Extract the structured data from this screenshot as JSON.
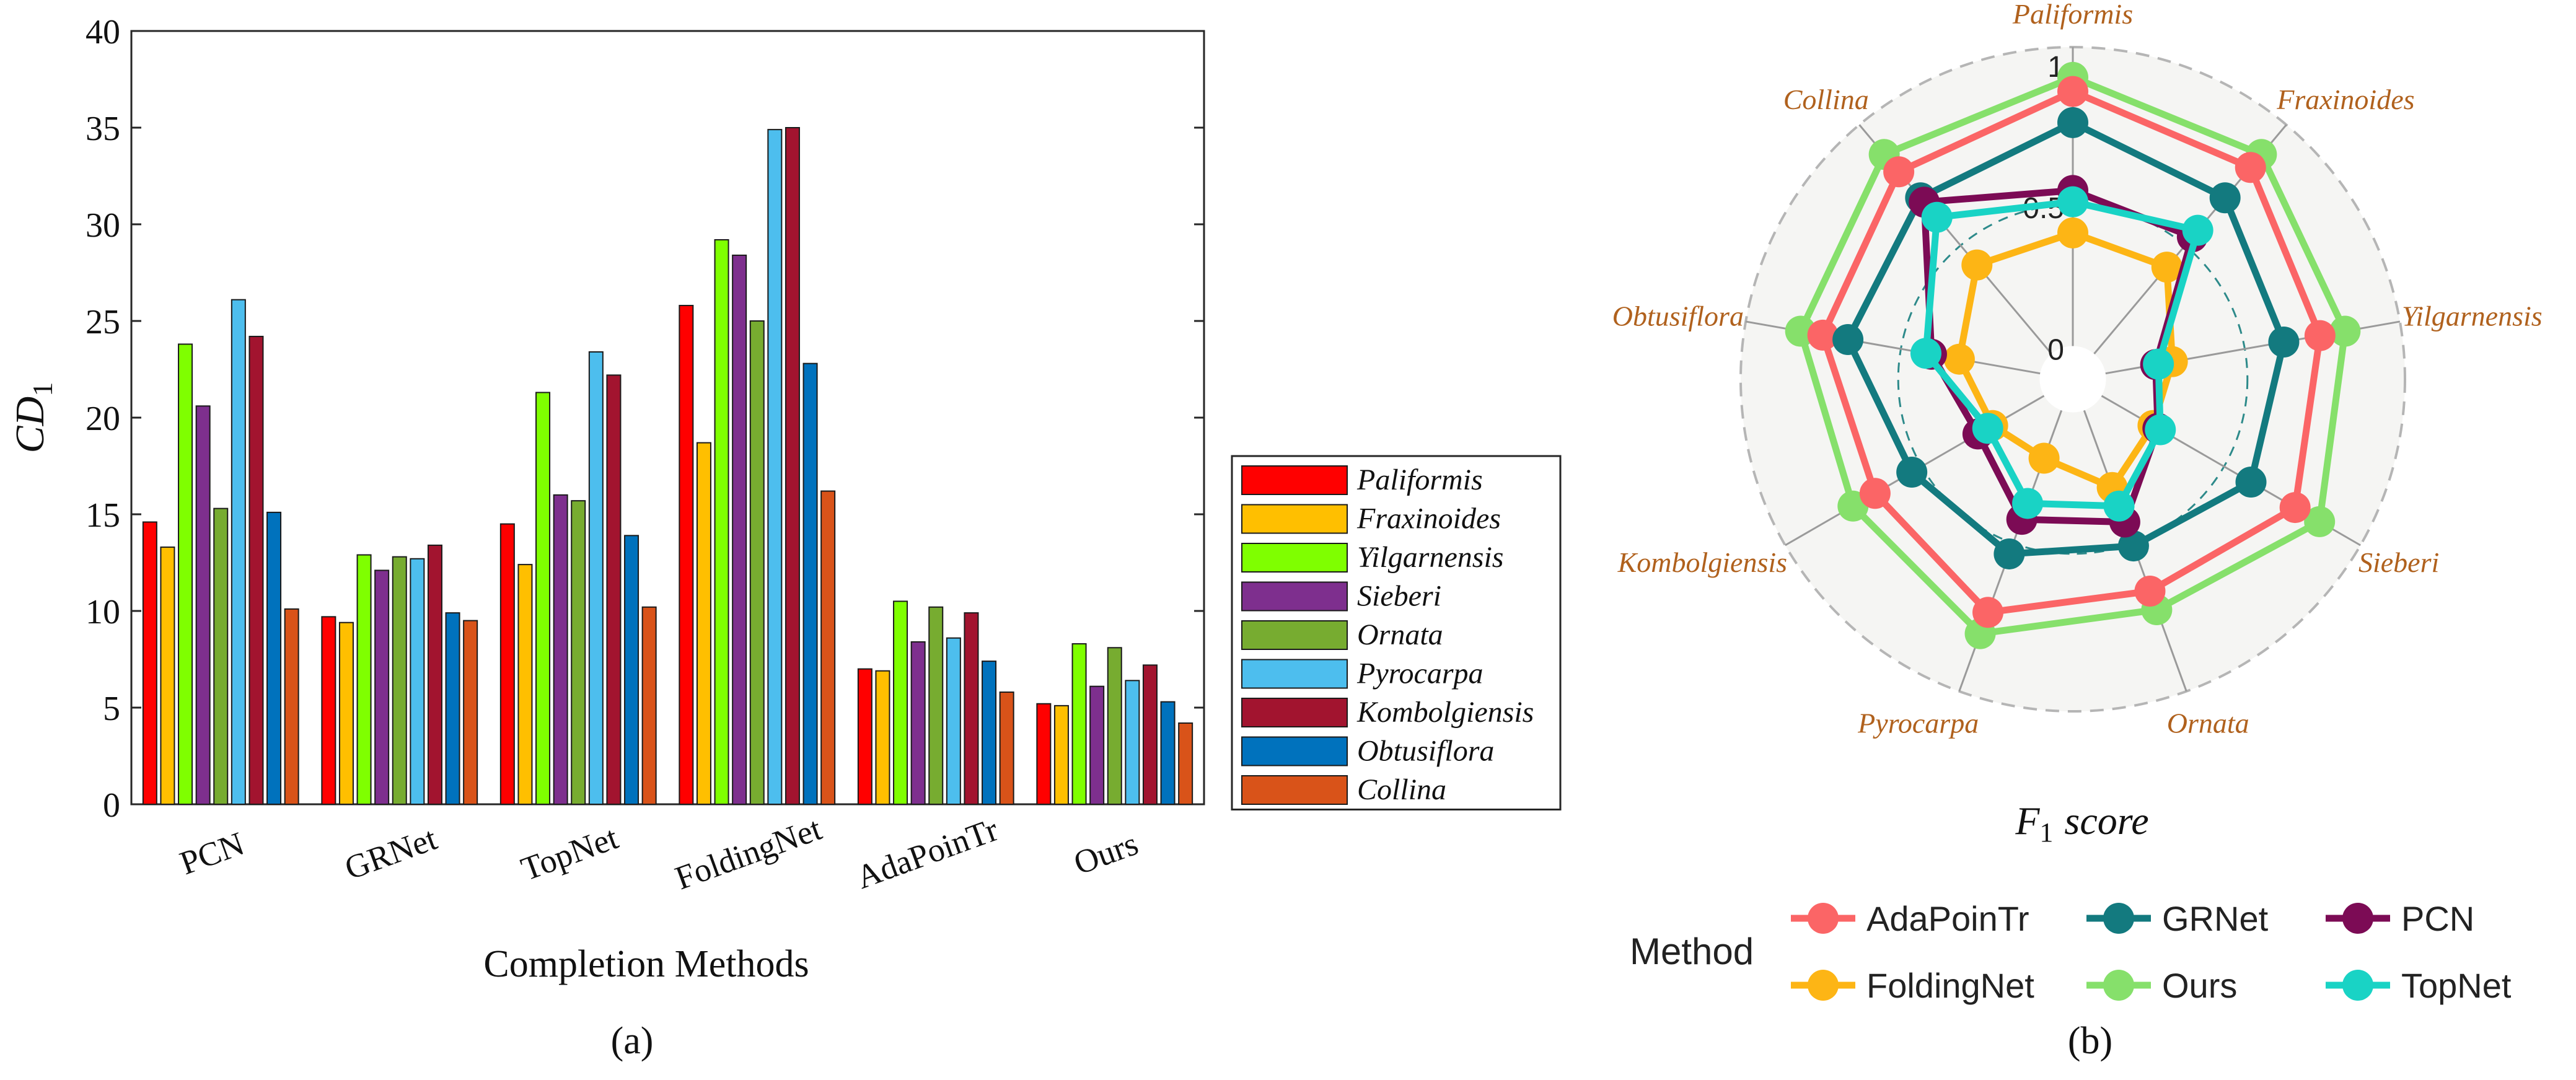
{
  "chart_data": [
    {
      "type": "bar",
      "panel_label": "(a)",
      "xlabel": "Completion Methods",
      "ylabel": "CD",
      "ylabel_sub": "1",
      "ylim": [
        0,
        40
      ],
      "yticks": [
        0,
        5,
        10,
        15,
        20,
        25,
        30,
        35,
        40
      ],
      "categories": [
        "PCN",
        "GRNet",
        "TopNet",
        "FoldingNet",
        "AdaPoinTr",
        "Ours"
      ],
      "series": [
        {
          "name": "Paliformis",
          "color": "#ff0000",
          "values": [
            14.6,
            9.7,
            14.5,
            25.8,
            7.0,
            5.2
          ]
        },
        {
          "name": "Fraxinoides",
          "color": "#ffbf00",
          "values": [
            13.3,
            9.4,
            12.4,
            18.7,
            6.9,
            5.1
          ]
        },
        {
          "name": "Yilgarnensis",
          "color": "#7fff00",
          "values": [
            23.8,
            12.9,
            21.3,
            29.2,
            10.5,
            8.3
          ]
        },
        {
          "name": "Sieberi",
          "color": "#7e2f8e",
          "values": [
            20.6,
            12.1,
            16.0,
            28.4,
            8.4,
            6.1
          ]
        },
        {
          "name": "Ornata",
          "color": "#77ac30",
          "values": [
            15.3,
            12.8,
            15.7,
            25.0,
            10.2,
            8.1
          ]
        },
        {
          "name": "Pyrocarpa",
          "color": "#4dbeee",
          "values": [
            26.1,
            12.7,
            23.4,
            34.9,
            8.6,
            6.4
          ]
        },
        {
          "name": "Kombolgiensis",
          "color": "#a2142f",
          "values": [
            24.2,
            13.4,
            22.2,
            35.0,
            9.9,
            7.2
          ]
        },
        {
          "name": "Obtusiflora",
          "color": "#0072bd",
          "values": [
            15.1,
            9.9,
            13.9,
            22.8,
            7.4,
            5.3
          ]
        },
        {
          "name": "Collina",
          "color": "#d95319",
          "values": [
            10.1,
            9.5,
            10.2,
            16.2,
            5.8,
            4.2
          ]
        }
      ],
      "legend_position": "right"
    },
    {
      "type": "radar",
      "panel_label": "(b)",
      "title": "F",
      "title_sub": "1",
      "title_rest": "score",
      "axes": [
        "Paliformis",
        "Fraxinoides",
        "Yilgarnensis",
        "Sieberi",
        "Ornata",
        "Pyrocarpa",
        "Kombolgiensis",
        "Obtusiflora",
        "Collina"
      ],
      "rlim": [
        0,
        1
      ],
      "rticks": [
        {
          "value": 0,
          "label": "0"
        },
        {
          "value": 0.5,
          "label": "0.5"
        },
        {
          "value": 1,
          "label": "1"
        }
      ],
      "legend_title": "Method",
      "series": [
        {
          "name": "AdaPoinTr",
          "color": "#fb6566",
          "values": [
            0.9,
            0.86,
            0.77,
            0.79,
            0.68,
            0.76,
            0.69,
            0.78,
            0.84
          ]
        },
        {
          "name": "FoldingNet",
          "color": "#fdb515",
          "values": [
            0.4,
            0.4,
            0.24,
            0.21,
            0.29,
            0.18,
            0.21,
            0.29,
            0.41
          ]
        },
        {
          "name": "GRNet",
          "color": "#137a7f",
          "values": [
            0.79,
            0.72,
            0.64,
            0.61,
            0.51,
            0.54,
            0.54,
            0.69,
            0.72
          ]
        },
        {
          "name": "Ours",
          "color": "#86e06b",
          "values": [
            0.95,
            0.92,
            0.86,
            0.89,
            0.75,
            0.84,
            0.78,
            0.86,
            0.92
          ]
        },
        {
          "name": "PCN",
          "color": "#7c0b55",
          "values": [
            0.55,
            0.54,
            0.18,
            0.23,
            0.42,
            0.41,
            0.27,
            0.39,
            0.7
          ]
        },
        {
          "name": "TopNet",
          "color": "#19d3c5",
          "values": [
            0.51,
            0.57,
            0.19,
            0.24,
            0.36,
            0.35,
            0.23,
            0.41,
            0.63
          ]
        }
      ]
    }
  ]
}
